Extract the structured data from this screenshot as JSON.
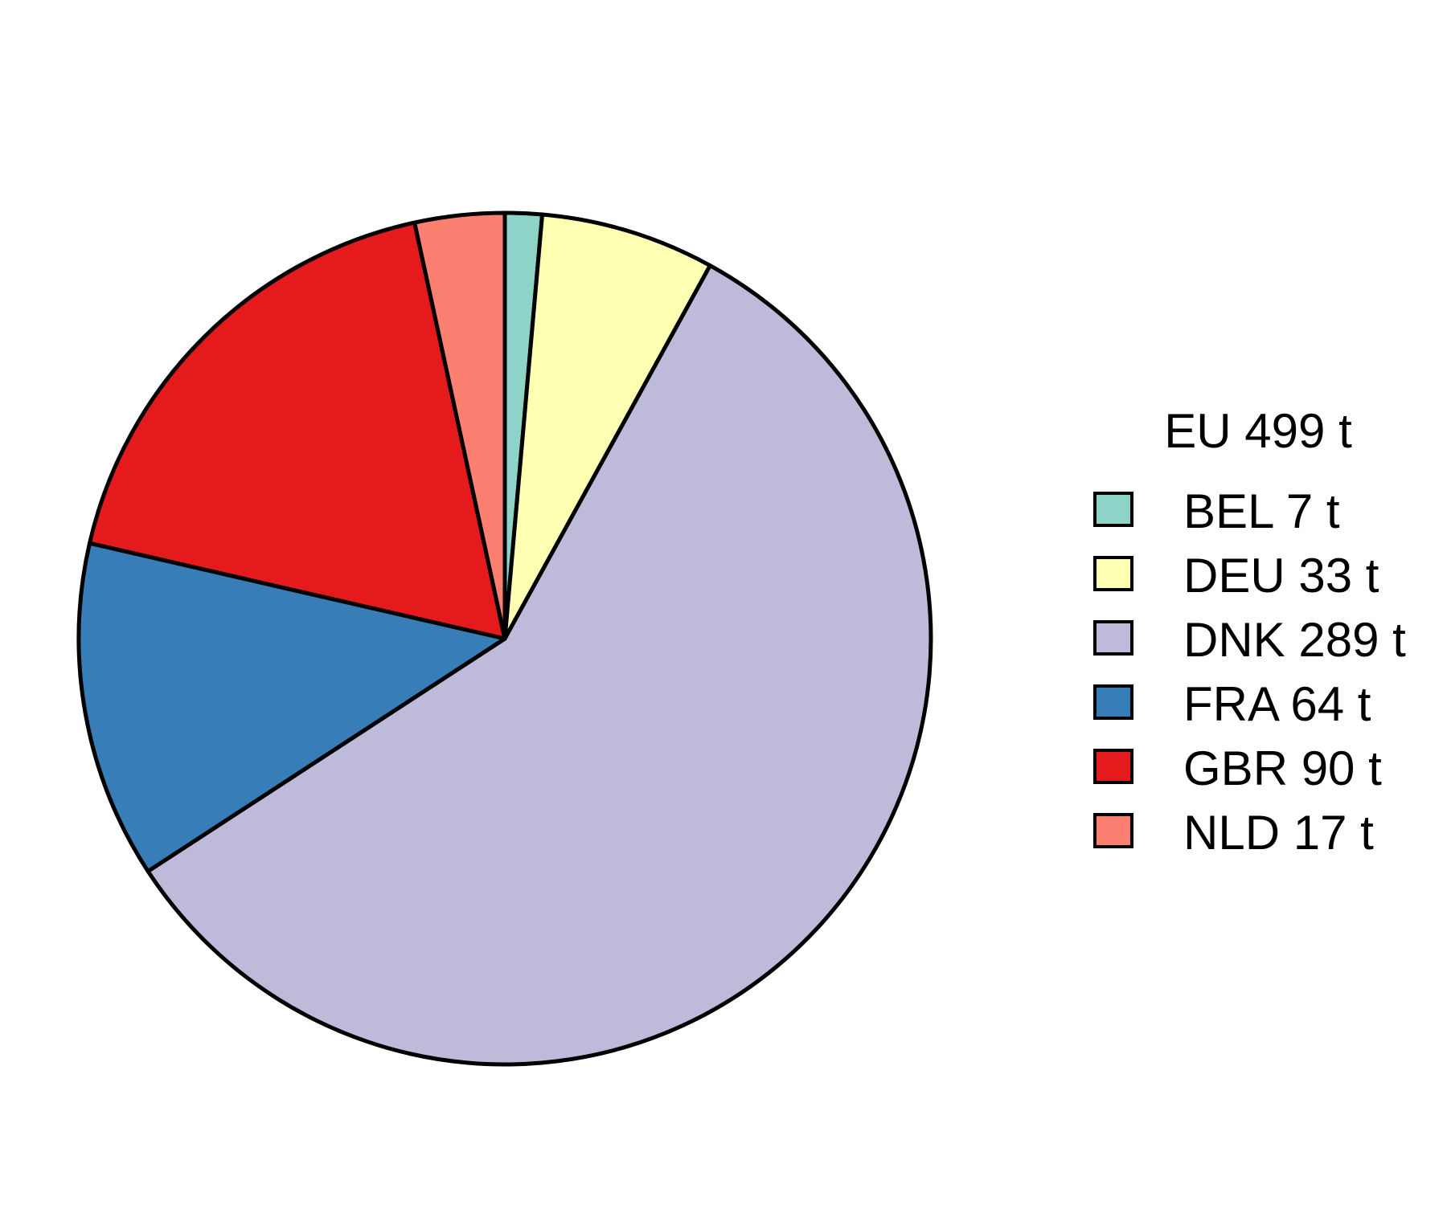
{
  "chart_data": {
    "type": "pie",
    "legend_title": "EU 499 t",
    "legend_position": "right",
    "start": "top",
    "direction": "clockwise",
    "slices": [
      {
        "name": "BEL",
        "value": 7,
        "label": "BEL 7 t",
        "color": "#8DD3C7"
      },
      {
        "name": "DEU",
        "value": 33,
        "label": "DEU 33 t",
        "color": "#FFFFB3"
      },
      {
        "name": "DNK",
        "value": 289,
        "label": "DNK 289 t",
        "color": "#BEBADA"
      },
      {
        "name": "FRA",
        "value": 64,
        "label": "FRA 64 t",
        "color": "#377EB8"
      },
      {
        "name": "GBR",
        "value": 90,
        "label": "GBR 90 t",
        "color": "#E41A1C"
      },
      {
        "name": "NLD",
        "value": 17,
        "label": "NLD 17 t",
        "color": "#FB8072"
      }
    ]
  }
}
